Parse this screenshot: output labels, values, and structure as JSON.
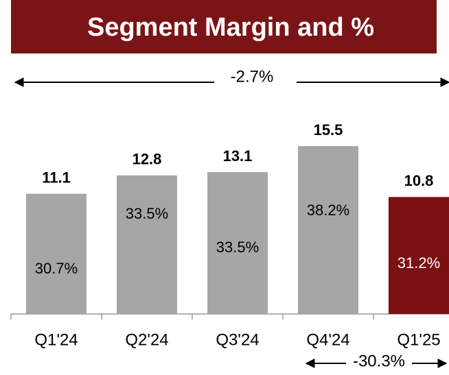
{
  "chart_data": {
    "type": "bar",
    "title": "Segment Margin and %",
    "categories": [
      "Q1'24",
      "Q2'24",
      "Q3'24",
      "Q4'24",
      "Q1'25"
    ],
    "values": [
      11.1,
      12.8,
      13.1,
      15.5,
      10.8
    ],
    "colors": [
      "#a6a6a6",
      "#a6a6a6",
      "#a6a6a6",
      "#a6a6a6",
      "#7b1113"
    ],
    "inner_labels": [
      "30.7%",
      "33.5%",
      "33.5%",
      "38.2%",
      "31.2%"
    ],
    "annotations": [
      "-2.7%",
      "-30.3%"
    ],
    "ylim": [
      0,
      20
    ]
  }
}
